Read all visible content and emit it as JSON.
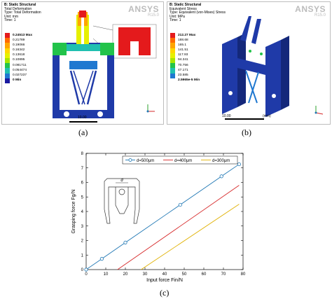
{
  "panel_a": {
    "title": "B: Static Structural",
    "subtitle": "Total Deformation",
    "type_line": "Type: Total Deformation",
    "unit_line": "Unit: mm",
    "time_line": "Time: 1",
    "brand": "ANSYS",
    "version": "R15.0",
    "legend_levels": [
      "0.24513 Max",
      "0.21789",
      "0.19066",
      "0.16342",
      "0.13618",
      "0.10895",
      "0.081711",
      "0.054474",
      "0.027237",
      "0 Min"
    ],
    "legend_colors": [
      "#e41a1c",
      "#ff6a00",
      "#ffa500",
      "#ffd700",
      "#e6f000",
      "#a6e600",
      "#22c34a",
      "#20c0b0",
      "#1f78d0",
      "#1a1aa0"
    ],
    "scale_label": "10.00",
    "caption": "(a)"
  },
  "panel_b": {
    "title": "B: Static Structural",
    "subtitle": "Equivalent Stress",
    "type_line": "Type: Equivalent (von-Mises) Stress",
    "unit_line": "Unit: MPa",
    "time_line": "Time: 1",
    "brand": "ANSYS",
    "version": "R15.0",
    "legend_levels": [
      "212.27 Max",
      "188.68",
      "165.1",
      "141.51",
      "117.93",
      "94.341",
      "70.756",
      "47.171",
      "23.585"
    ],
    "legend_min": "2.5965e-5 Min",
    "legend_colors": [
      "#e41a1c",
      "#ff6a00",
      "#ffa500",
      "#ffd700",
      "#e6f000",
      "#a6e600",
      "#22c34a",
      "#20c0b0",
      "#1f78d0",
      "#1a1aa0"
    ],
    "scale_label_left": "10.00",
    "scale_label_right": "(mm)",
    "caption": "(b)"
  },
  "panel_c": {
    "caption": "(c)",
    "inset_label": "d",
    "chart_data": {
      "type": "line",
      "xlabel": "Input force Fin/N",
      "ylabel": "Grasping force Fg/N",
      "xlim": [
        0,
        80
      ],
      "ylim": [
        0,
        8
      ],
      "xticks": [
        0,
        10,
        20,
        30,
        40,
        50,
        60,
        70,
        80
      ],
      "yticks": [
        0,
        1,
        2,
        3,
        4,
        5,
        6,
        7,
        8
      ],
      "legend_position": "top-center",
      "grid": false,
      "series": [
        {
          "name": "d=500μm",
          "color": "#1f77b4",
          "marker": "circle",
          "x": [
            0,
            10,
            20,
            30,
            40,
            50,
            60,
            70,
            78
          ],
          "y": [
            0,
            0.93,
            1.86,
            2.79,
            3.72,
            4.65,
            5.58,
            6.51,
            7.25
          ],
          "marker_x": [
            0,
            8,
            20,
            48,
            69,
            78
          ],
          "marker_y": [
            0,
            0.74,
            1.86,
            4.46,
            6.42,
            7.25
          ]
        },
        {
          "name": "d=400μm",
          "color": "#d62728",
          "marker": "none",
          "x": [
            16,
            78
          ],
          "y": [
            0,
            5.8
          ]
        },
        {
          "name": "d=300μm",
          "color": "#e0b000",
          "marker": "none",
          "x": [
            28,
            78
          ],
          "y": [
            0,
            4.5
          ]
        }
      ]
    }
  }
}
